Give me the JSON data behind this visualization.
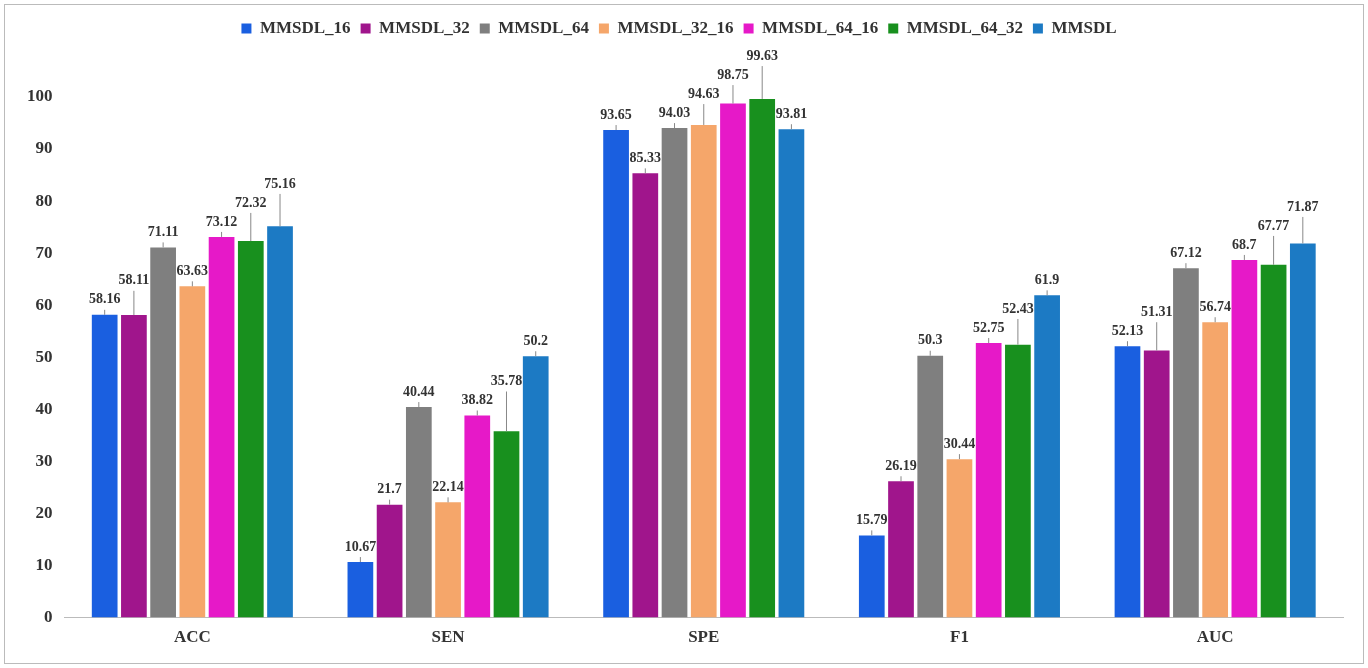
{
  "chart_data": {
    "type": "bar",
    "categories": [
      "ACC",
      "SEN",
      "SPE",
      "F1",
      "AUC"
    ],
    "series": [
      {
        "name": "MMSDL_16",
        "color": "#1a5fe0",
        "values": [
          58.16,
          10.67,
          93.65,
          15.79,
          52.13
        ]
      },
      {
        "name": "MMSDL_32",
        "color": "#a0158c",
        "values": [
          58.11,
          21.7,
          85.33,
          26.19,
          51.31
        ]
      },
      {
        "name": "MMSDL_64",
        "color": "#7f7f7f",
        "values": [
          71.11,
          40.44,
          94.03,
          50.3,
          67.12
        ]
      },
      {
        "name": "MMSDL_32_16",
        "color": "#f5a66a",
        "values": [
          63.63,
          22.14,
          94.63,
          30.44,
          56.74
        ]
      },
      {
        "name": "MMSDL_64_16",
        "color": "#e619c8",
        "values": [
          73.12,
          38.82,
          98.75,
          52.75,
          68.7
        ]
      },
      {
        "name": "MMSDL_64_32",
        "color": "#18901e",
        "values": [
          72.32,
          35.78,
          99.63,
          52.43,
          67.77
        ]
      },
      {
        "name": "MMSDL",
        "color": "#1c7ac4",
        "values": [
          75.16,
          50.2,
          93.81,
          61.9,
          71.87
        ]
      }
    ],
    "ylim": [
      0,
      100
    ],
    "yticks": [
      0,
      10,
      20,
      30,
      40,
      50,
      60,
      70,
      80,
      90,
      100
    ],
    "grid": false,
    "legend": "top",
    "data_labels": true
  }
}
